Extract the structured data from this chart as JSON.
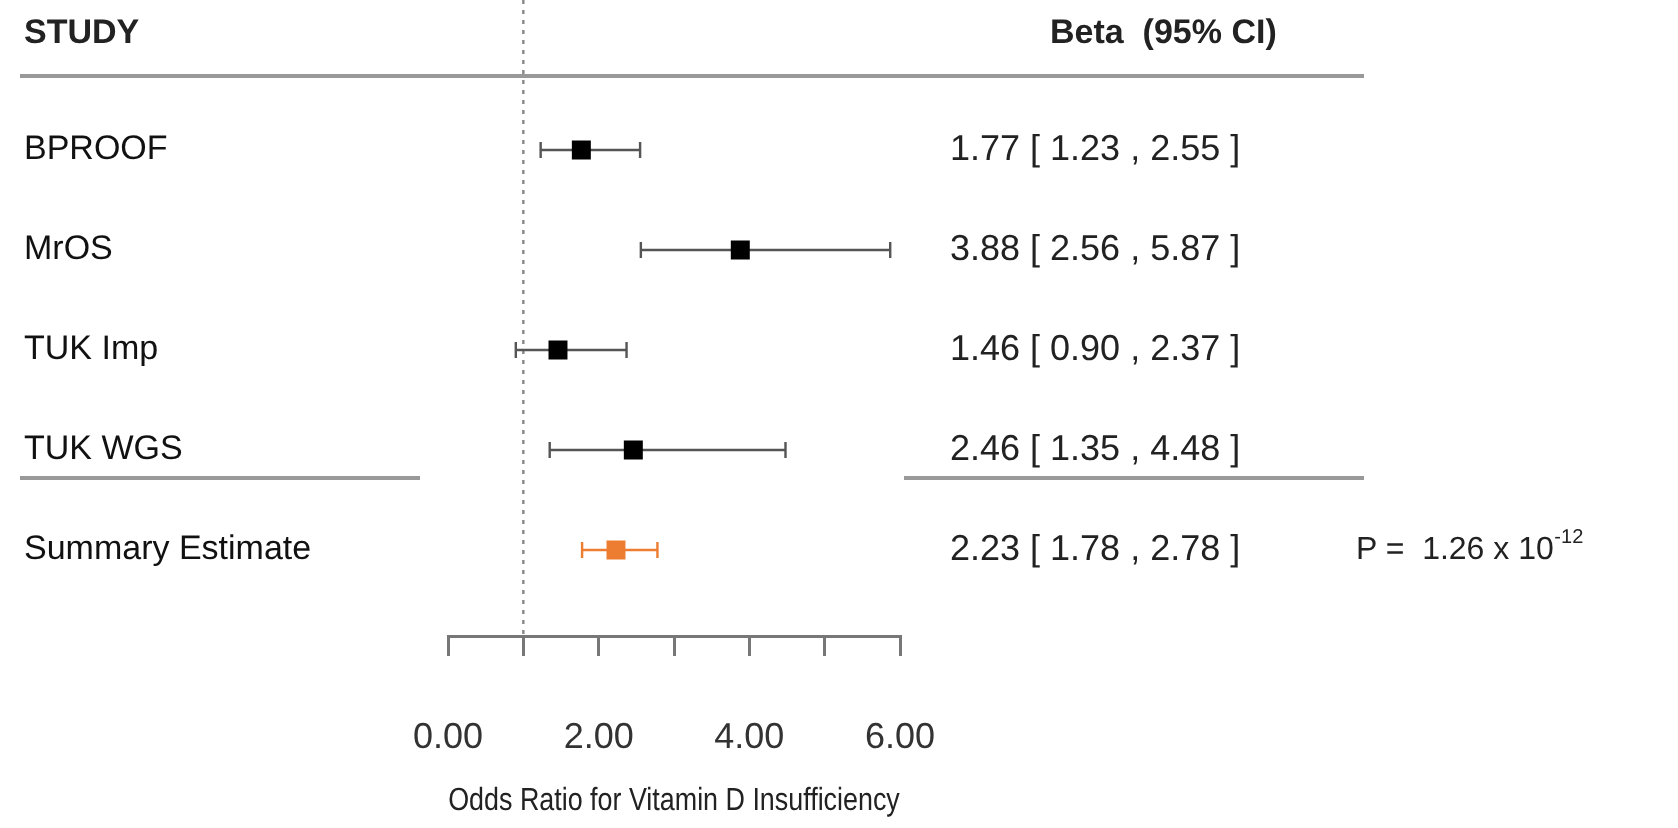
{
  "chart_data": {
    "type": "scatter",
    "orientation": "horizontal",
    "xlabel": "Odds Ratio for Vitamin D Insufficiency",
    "categories": [
      "BPROOF",
      "MrOS",
      "TUK Imp",
      "TUK WGS",
      "Summary Estimate"
    ],
    "series": [
      {
        "colors": [
          "#000000",
          "#000000",
          "#000000",
          "#000000",
          "#ed7d31"
        ],
        "marker": "square",
        "values": [
          1.77,
          3.88,
          1.46,
          2.46,
          2.23
        ],
        "errors": [
          [
            1.23,
            2.55
          ],
          [
            2.56,
            5.87
          ],
          [
            0.9,
            2.37
          ],
          [
            1.35,
            4.48
          ],
          [
            1.78,
            2.78
          ]
        ],
        "value_labels": [
          "1.77 [ 1.23 , 2.55 ]",
          "3.88 [ 2.56 , 5.87 ]",
          "1.46 [ 0.90 , 2.37 ]",
          "2.46 [ 1.35 , 4.48 ]",
          "2.23 [ 1.78 , 2.78 ]"
        ]
      }
    ],
    "xlim": [
      0,
      6
    ],
    "xticks": [
      {
        "value": 0,
        "label": "0.00"
      },
      {
        "value": 1,
        "label": null
      },
      {
        "value": 2,
        "label": "2.00"
      },
      {
        "value": 3,
        "label": null
      },
      {
        "value": 4,
        "label": "4.00"
      },
      {
        "value": 5,
        "label": null
      },
      {
        "value": 6,
        "label": "6.00"
      }
    ],
    "ref_lines": [
      {
        "axis": "x",
        "value": 1,
        "line_style": "dotted",
        "color": "#888888"
      }
    ],
    "annotations": [
      "STUDY",
      "Beta  (95% CI)",
      "P =  1.26 x 10$^{-12}$"
    ],
    "grid": false,
    "legend": false
  }
}
